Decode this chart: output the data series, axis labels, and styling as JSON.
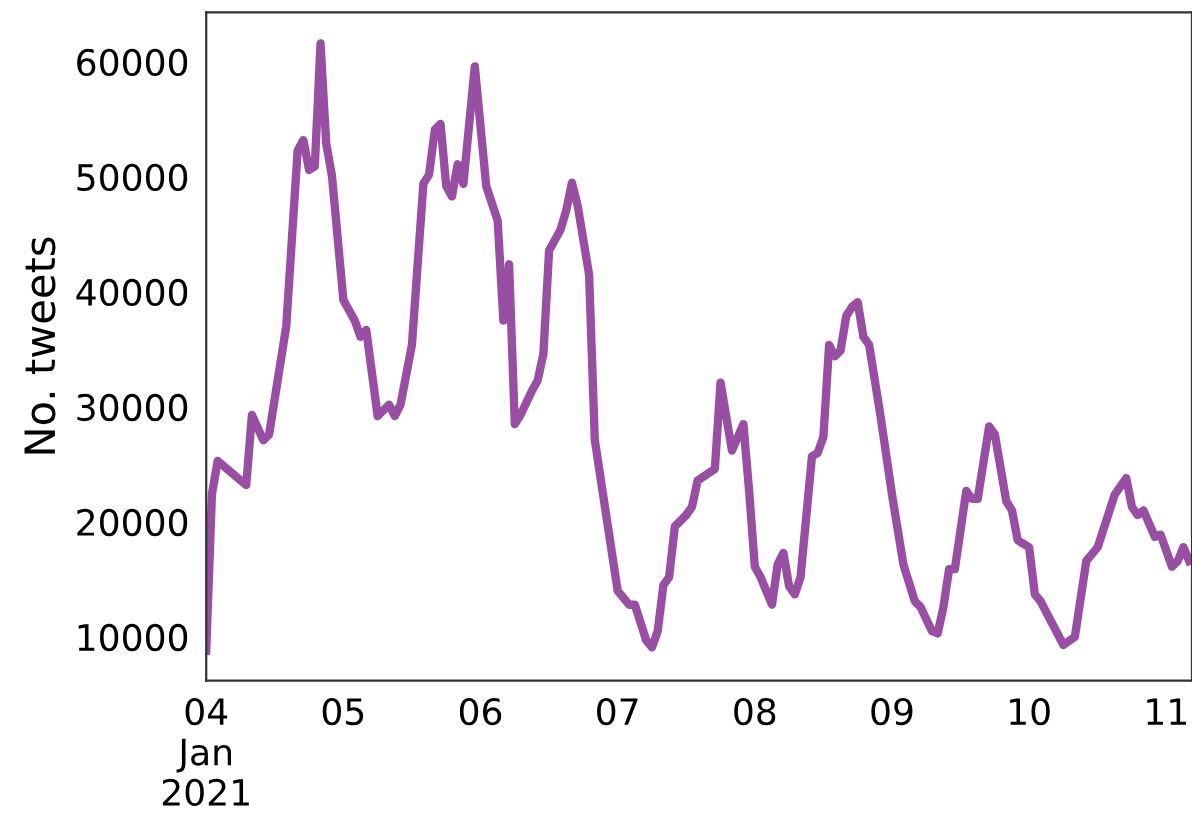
{
  "chart_data": {
    "type": "line",
    "ylabel": "No. tweets",
    "x": [
      "2021-01-04T00:00",
      "2021-01-04T01:00",
      "2021-01-04T02:00",
      "2021-01-04T07:00",
      "2021-01-04T08:00",
      "2021-01-04T10:00",
      "2021-01-04T11:00",
      "2021-01-04T14:00",
      "2021-01-04T16:00",
      "2021-01-04T17:00",
      "2021-01-04T18:00",
      "2021-01-04T19:00",
      "2021-01-04T20:00",
      "2021-01-04T21:00",
      "2021-01-04T22:00",
      "2021-01-05T00:00",
      "2021-01-05T02:00",
      "2021-01-05T03:00",
      "2021-01-05T04:00",
      "2021-01-05T06:00",
      "2021-01-05T08:00",
      "2021-01-05T09:00",
      "2021-01-05T10:00",
      "2021-01-05T12:00",
      "2021-01-05T14:00",
      "2021-01-05T15:00",
      "2021-01-05T16:00",
      "2021-01-05T17:00",
      "2021-01-05T18:00",
      "2021-01-05T19:00",
      "2021-01-05T20:00",
      "2021-01-05T21:00",
      "2021-01-05T23:00",
      "2021-01-06T01:00",
      "2021-01-06T03:00",
      "2021-01-06T04:00",
      "2021-01-06T05:00",
      "2021-01-06T06:00",
      "2021-01-06T07:00",
      "2021-01-06T09:00",
      "2021-01-06T10:00",
      "2021-01-06T11:00",
      "2021-01-06T12:00",
      "2021-01-06T14:00",
      "2021-01-06T15:00",
      "2021-01-06T16:00",
      "2021-01-06T17:00",
      "2021-01-06T19:00",
      "2021-01-06T20:00",
      "2021-01-07T00:00",
      "2021-01-07T02:00",
      "2021-01-07T03:00",
      "2021-01-07T05:00",
      "2021-01-07T06:00",
      "2021-01-07T07:00",
      "2021-01-07T08:00",
      "2021-01-07T09:00",
      "2021-01-07T10:00",
      "2021-01-07T12:00",
      "2021-01-07T13:00",
      "2021-01-07T14:00",
      "2021-01-07T17:00",
      "2021-01-07T18:00",
      "2021-01-07T20:00",
      "2021-01-07T22:00",
      "2021-01-07T23:00",
      "2021-01-08T00:00",
      "2021-01-08T01:00",
      "2021-01-08T03:00",
      "2021-01-08T04:00",
      "2021-01-08T05:00",
      "2021-01-08T06:00",
      "2021-01-08T07:00",
      "2021-01-08T08:00",
      "2021-01-08T10:00",
      "2021-01-08T11:00",
      "2021-01-08T12:00",
      "2021-01-08T13:00",
      "2021-01-08T14:00",
      "2021-01-08T15:00",
      "2021-01-08T16:00",
      "2021-01-08T17:00",
      "2021-01-08T18:00",
      "2021-01-08T19:00",
      "2021-01-08T20:00",
      "2021-01-08T22:00",
      "2021-01-09T00:00",
      "2021-01-09T02:00",
      "2021-01-09T04:00",
      "2021-01-09T05:00",
      "2021-01-09T07:00",
      "2021-01-09T08:00",
      "2021-01-09T09:00",
      "2021-01-09T10:00",
      "2021-01-09T11:00",
      "2021-01-09T13:00",
      "2021-01-09T14:00",
      "2021-01-09T15:00",
      "2021-01-09T17:00",
      "2021-01-09T18:00",
      "2021-01-09T20:00",
      "2021-01-09T21:00",
      "2021-01-09T22:00",
      "2021-01-10T00:00",
      "2021-01-10T01:00",
      "2021-01-10T02:00",
      "2021-01-10T06:00",
      "2021-01-10T08:00",
      "2021-01-10T10:00",
      "2021-01-10T12:00",
      "2021-01-10T15:00",
      "2021-01-10T17:00",
      "2021-01-10T18:00",
      "2021-01-10T19:00",
      "2021-01-10T20:00",
      "2021-01-10T22:00",
      "2021-01-10T23:00",
      "2021-01-11T01:00",
      "2021-01-11T02:00",
      "2021-01-11T03:00",
      "2021-01-11T04:00"
    ],
    "series": [
      {
        "color": "#984ea3",
        "values": [
          8800,
          22400,
          25300,
          23200,
          29300,
          27100,
          27600,
          37000,
          52300,
          53200,
          50600,
          50900,
          61600,
          52900,
          50100,
          39300,
          37500,
          36100,
          36700,
          29200,
          30200,
          29200,
          30200,
          35400,
          49400,
          50200,
          54100,
          54600,
          49200,
          48300,
          51100,
          49400,
          59600,
          49200,
          46200,
          37500,
          42400,
          28500,
          29300,
          31400,
          32300,
          34600,
          43600,
          45400,
          47100,
          49500,
          47500,
          41500,
          27100,
          14000,
          12800,
          12800,
          9700,
          9100,
          10500,
          14500,
          15200,
          19600,
          20600,
          21300,
          23600,
          24600,
          32100,
          26200,
          28500,
          22700,
          16100,
          15200,
          12800,
          16300,
          17300,
          14400,
          13700,
          15200,
          25700,
          26000,
          27400,
          35400,
          34400,
          34900,
          37900,
          38700,
          39100,
          36100,
          35400,
          29200,
          22400,
          16300,
          13100,
          12600,
          10500,
          10300,
          12600,
          15900,
          15900,
          22700,
          22000,
          22000,
          28300,
          27600,
          21800,
          21000,
          18400,
          17800,
          13700,
          13100,
          9300,
          10000,
          16600,
          17800,
          22400,
          23800,
          21300,
          20600,
          21000,
          18700,
          18900,
          16100,
          16600,
          17800,
          16600
        ]
      }
    ],
    "xlim": [
      "2021-01-04T00:00",
      "2021-01-11T04:30"
    ],
    "xticks": [
      {
        "value": "2021-01-04",
        "label": "04\nJan\n2021"
      },
      {
        "value": "2021-01-05",
        "label": "05"
      },
      {
        "value": "2021-01-06",
        "label": "06"
      },
      {
        "value": "2021-01-07",
        "label": "07"
      },
      {
        "value": "2021-01-08",
        "label": "08"
      },
      {
        "value": "2021-01-09",
        "label": "09"
      },
      {
        "value": "2021-01-10",
        "label": "10"
      },
      {
        "value": "2021-01-11",
        "label": "11"
      }
    ],
    "ylim": [
      6200,
      64300
    ],
    "yticks": [
      10000,
      20000,
      30000,
      40000,
      50000,
      60000
    ],
    "grid": false,
    "legend": false,
    "marker": "none",
    "line_style": "solid"
  }
}
